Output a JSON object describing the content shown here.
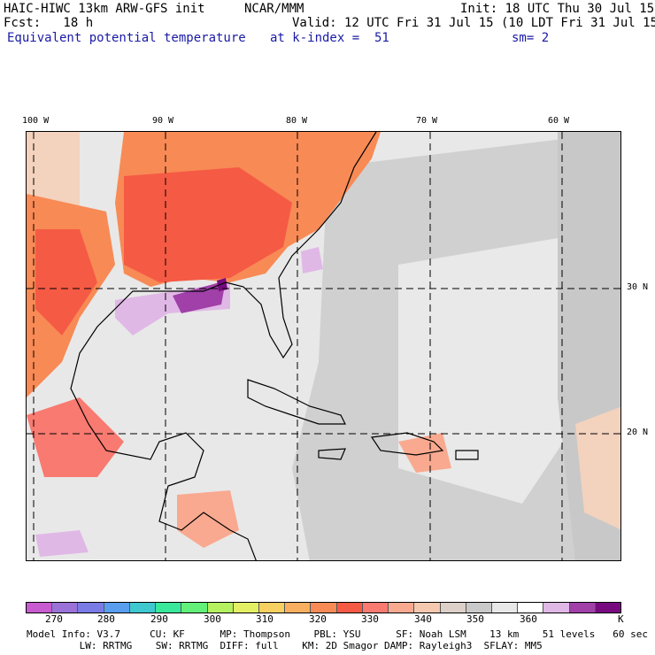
{
  "header": {
    "model_title": "HAIC-HIWC 13km ARW-GFS init",
    "org": "NCAR/MMM",
    "init": "Init: 18 UTC Thu 30 Jul 15",
    "fcst": "Fcst:   18 h",
    "valid": "Valid: 12 UTC Fri 31 Jul 15 (10 LDT Fri 31 Jul 15)",
    "field": "Equivalent potential temperature",
    "level": "at k-index =  51",
    "smooth": "sm= 2"
  },
  "map": {
    "lon_labels": [
      "100 W",
      "90 W",
      "80 W",
      "70 W",
      "60 W"
    ],
    "lat_labels": [
      "30 N",
      "20 N"
    ],
    "grid_lons": [
      -100,
      -90,
      -80,
      -70,
      -60
    ],
    "grid_lats": [
      30,
      20
    ],
    "extent": {
      "lon_min": -100,
      "lon_max": -55,
      "lat_min": 10,
      "lat_max": 40
    }
  },
  "colorbar": {
    "colors": [
      "#c95bd0",
      "#9b72d8",
      "#7b7be6",
      "#5a9ef0",
      "#3fc8cf",
      "#3ae89b",
      "#63f07a",
      "#b4f060",
      "#e4f064",
      "#f6d060",
      "#f8b060",
      "#f88a55",
      "#f55a44",
      "#f87a70",
      "#f9a98f",
      "#f5c8b0",
      "#dcd0c8",
      "#c9c9c9",
      "#e8e8e8",
      "#ffffff",
      "#e0b8e6",
      "#a040a8",
      "#780a80"
    ],
    "tick_labels": [
      "270",
      "280",
      "290",
      "300",
      "310",
      "320",
      "330",
      "340",
      "350",
      "360"
    ],
    "unit": "K"
  },
  "footer": {
    "line1": "Model Info: V3.7     CU: KF      MP: Thompson    PBL: YSU      SF: Noah LSM    13 km    51 levels   60 sec",
    "line2": "         LW: RRTMG    SW: RRTMG  DIFF: full    KM: 2D Smagor DAMP: Rayleigh3  SFLAY: MM5"
  }
}
